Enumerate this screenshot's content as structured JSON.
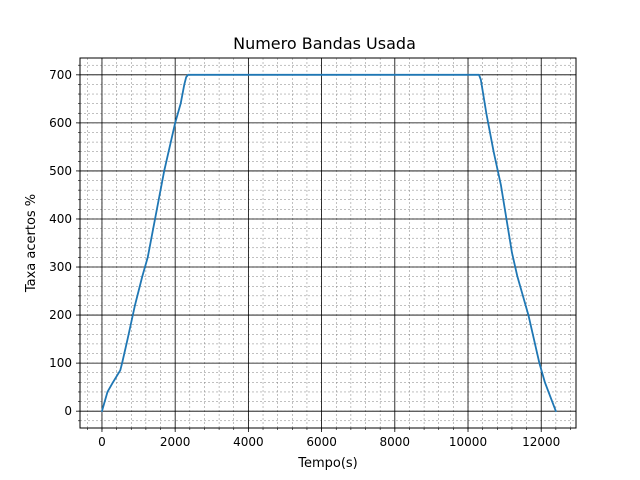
{
  "chart_data": {
    "type": "line",
    "title": "Numero Bandas Usada",
    "xlabel": "Tempo(s)",
    "ylabel": "Taxa acertos %",
    "xlim": [
      -600,
      12950
    ],
    "ylim": [
      -35,
      735
    ],
    "xticks": [
      0,
      2000,
      4000,
      6000,
      8000,
      10000,
      12000
    ],
    "xtick_labels": [
      "0",
      "2000",
      "4000",
      "6000",
      "8000",
      "10000",
      "12000"
    ],
    "yticks": [
      0,
      100,
      200,
      300,
      400,
      500,
      600,
      700
    ],
    "ytick_labels": [
      "0",
      "100",
      "200",
      "300",
      "400",
      "500",
      "600",
      "700"
    ],
    "x_minor_step": 400,
    "y_minor_step": 20,
    "grid": true,
    "legend": "none",
    "series": [
      {
        "color": "#1f77b4",
        "x": [
          0,
          150,
          300,
          500,
          550,
          700,
          900,
          1100,
          1250,
          1400,
          1550,
          1700,
          1850,
          2000,
          2150,
          2250,
          2300,
          2350,
          10300,
          10350,
          10500,
          10700,
          10900,
          11050,
          11200,
          11350,
          11500,
          11650,
          11800,
          11950,
          12100,
          12250,
          12400
        ],
        "y": [
          0,
          40,
          60,
          85,
          100,
          150,
          220,
          280,
          320,
          380,
          440,
          500,
          550,
          600,
          640,
          680,
          695,
          700,
          700,
          690,
          620,
          540,
          470,
          400,
          330,
          280,
          240,
          200,
          150,
          100,
          60,
          30,
          0
        ]
      }
    ]
  }
}
